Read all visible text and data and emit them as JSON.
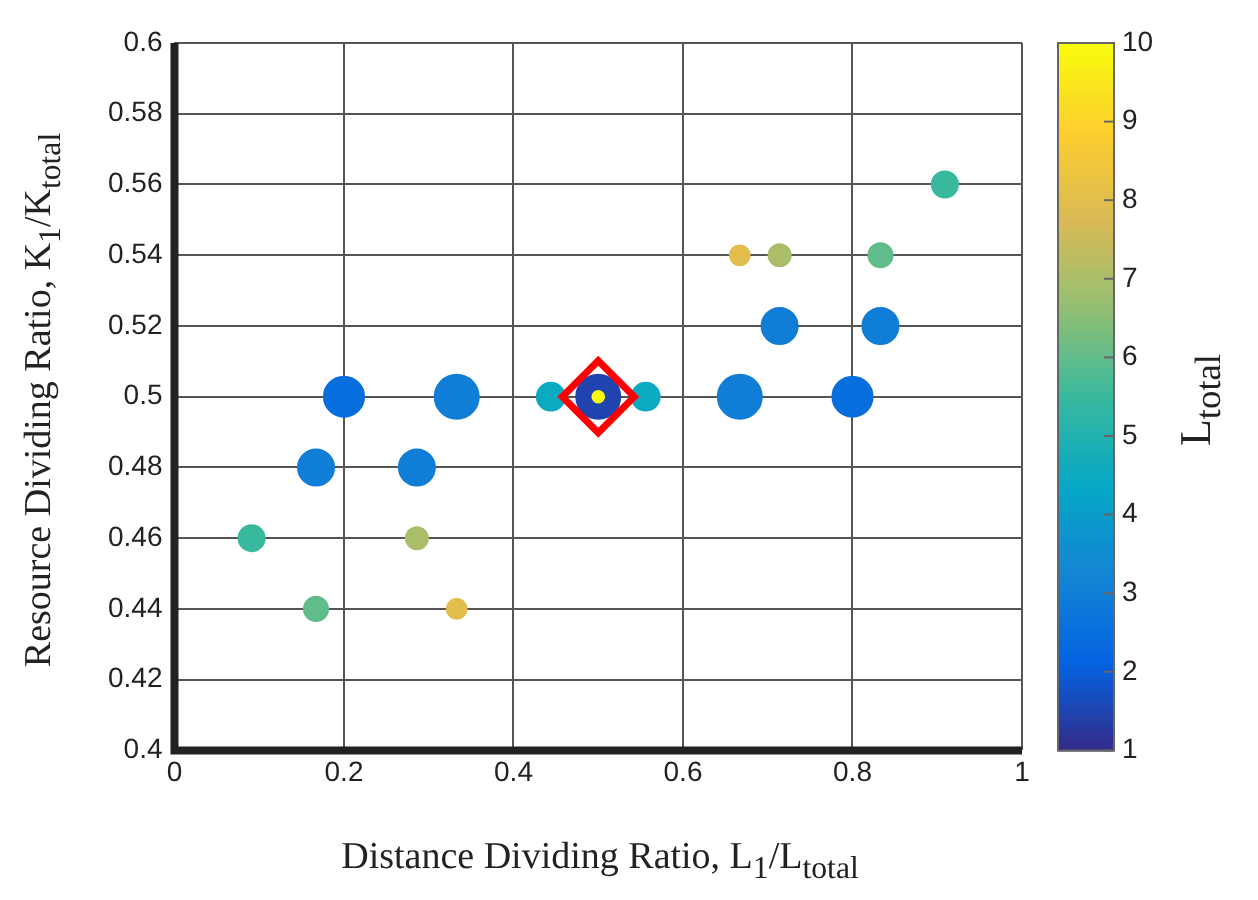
{
  "chart_data": {
    "type": "bubble",
    "xlabel": "Distance Dividing Ratio, L$_{1}$/L$_{total}$",
    "ylabel": "Resource Dividing Ratio, K$_{1}$/K$_{total}$",
    "clabel": "L$_{total}$",
    "xlim": [
      0,
      1
    ],
    "xticks": [
      0,
      0.2,
      0.4,
      0.6,
      0.8,
      1
    ],
    "ylim": [
      0.4,
      0.6
    ],
    "yticks": [
      0.4,
      0.42,
      0.44,
      0.46,
      0.48,
      0.5,
      0.52,
      0.54,
      0.56,
      0.58,
      0.6
    ],
    "clim": [
      1,
      10
    ],
    "cticks": [
      1,
      2,
      3,
      4,
      5,
      6,
      7,
      8,
      9,
      10
    ],
    "grid": true,
    "legend": false,
    "series": [
      {
        "type": "scatter",
        "marker": "diamond",
        "color": "#ff0000",
        "x": [
          0.5
        ],
        "values": [
          0.5
        ]
      },
      {
        "x": [
          0.5
        ],
        "values": [
          0.5
        ],
        "cvalues": [
          10
        ],
        "colors": [
          "#f9fb0e"
        ],
        "sizes": [
          0.07
        ]
      },
      {
        "x": [
          0.5,
          0.333,
          0.667,
          0.2,
          0.8,
          0.167,
          0.286,
          0.714,
          0.833,
          0.444,
          0.556,
          0.091,
          0.909,
          0.167,
          0.833,
          0.286,
          0.714,
          0.333,
          0.667
        ],
        "values": [
          0.5,
          0.5,
          0.5,
          0.5,
          0.5,
          0.48,
          0.48,
          0.52,
          0.52,
          0.5,
          0.5,
          0.46,
          0.56,
          0.44,
          0.54,
          0.46,
          0.54,
          0.44,
          0.54
        ],
        "cvalues": [
          1.5,
          3,
          3,
          2.5,
          2.5,
          3,
          3,
          3,
          3,
          4.5,
          4.5,
          5.5,
          5.5,
          6,
          6,
          7,
          7,
          8,
          8
        ],
        "colors": [
          "#1f43af",
          "#107dd7",
          "#107dd7",
          "#096edd",
          "#096edd",
          "#107dd7",
          "#107dd7",
          "#107dd7",
          "#107dd7",
          "#0ca9c2",
          "#0ca9c2",
          "#38b99e",
          "#38b99e",
          "#60bc8b",
          "#60bc8b",
          "#aabd69",
          "#aabd69",
          "#e1be4d",
          "#e1be4d"
        ],
        "sizes": [
          1,
          1,
          1,
          0.83,
          0.83,
          0.67,
          0.67,
          0.67,
          0.67,
          0.4,
          0.4,
          0.35,
          0.35,
          0.3,
          0.3,
          0.25,
          0.25,
          0.2,
          0.2
        ]
      }
    ]
  }
}
